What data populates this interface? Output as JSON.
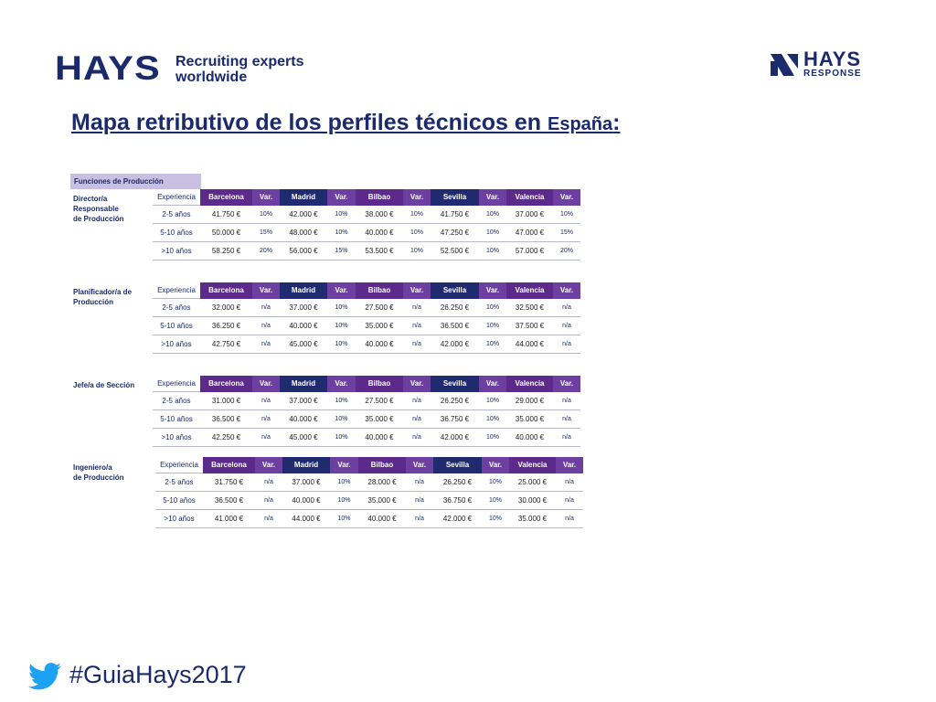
{
  "header": {
    "logo_text": "HAYS",
    "tagline_line1": "Recruiting experts",
    "tagline_line2": "worldwide",
    "response_logo_line1": "HAYS",
    "response_logo_line2": "RESPONSE"
  },
  "title": {
    "main": "Mapa retributivo de los perfiles técnicos en ",
    "country": "España",
    "colon": ":"
  },
  "section_header": "Funciones de Producción",
  "columns": {
    "experiencia": "Experiencia",
    "cities": [
      "Barcelona",
      "Madrid",
      "Bilbao",
      "Sevilla",
      "Valencia"
    ],
    "var": "Var."
  },
  "groups": [
    {
      "label": "Director/a\nResponsable\nde Producción",
      "rows": [
        {
          "exp": "2-5 años",
          "cells": [
            [
              "41.750 €",
              "10%"
            ],
            [
              "42.000 €",
              "10%"
            ],
            [
              "38.000 €",
              "10%"
            ],
            [
              "41.750 €",
              "10%"
            ],
            [
              "37.000 €",
              "10%"
            ]
          ]
        },
        {
          "exp": "5-10 años",
          "cells": [
            [
              "50.000 €",
              "15%"
            ],
            [
              "48.000 €",
              "10%"
            ],
            [
              "40.000 €",
              "10%"
            ],
            [
              "47.250 €",
              "10%"
            ],
            [
              "47.000 €",
              "15%"
            ]
          ]
        },
        {
          "exp": ">10 años",
          "cells": [
            [
              "58.250 €",
              "20%"
            ],
            [
              "56.000 €",
              "15%"
            ],
            [
              "53.500 €",
              "10%"
            ],
            [
              "52.500 €",
              "10%"
            ],
            [
              "57.000 €",
              "20%"
            ]
          ]
        }
      ]
    },
    {
      "label": "Planificador/a de\nProducción",
      "rows": [
        {
          "exp": "2-5 años",
          "cells": [
            [
              "32.000 €",
              "n/a"
            ],
            [
              "37.000 €",
              "10%"
            ],
            [
              "27.500 €",
              "n/a"
            ],
            [
              "26.250 €",
              "10%"
            ],
            [
              "32.500 €",
              "n/a"
            ]
          ]
        },
        {
          "exp": "5-10 años",
          "cells": [
            [
              "36.250 €",
              "n/a"
            ],
            [
              "40.000 €",
              "10%"
            ],
            [
              "35.000 €",
              "n/a"
            ],
            [
              "36.500 €",
              "10%"
            ],
            [
              "37.500 €",
              "n/a"
            ]
          ]
        },
        {
          "exp": ">10 años",
          "cells": [
            [
              "42.750 €",
              "n/a"
            ],
            [
              "45.000 €",
              "10%"
            ],
            [
              "40.000 €",
              "n/a"
            ],
            [
              "42.000 €",
              "10%"
            ],
            [
              "44.000 €",
              "n/a"
            ]
          ]
        }
      ]
    },
    {
      "label": "Jefe/a de Sección",
      "rows": [
        {
          "exp": "2-5 años",
          "cells": [
            [
              "31.000 €",
              "n/a"
            ],
            [
              "37.000 €",
              "10%"
            ],
            [
              "27.500 €",
              "n/a"
            ],
            [
              "26.250 €",
              "10%"
            ],
            [
              "29.000 €",
              "n/a"
            ]
          ]
        },
        {
          "exp": "5-10 años",
          "cells": [
            [
              "36.500 €",
              "n/a"
            ],
            [
              "40.000 €",
              "10%"
            ],
            [
              "35.000 €",
              "n/a"
            ],
            [
              "36.750 €",
              "10%"
            ],
            [
              "35.000 €",
              "n/a"
            ]
          ]
        },
        {
          "exp": ">10 años",
          "cells": [
            [
              "42.250 €",
              "n/a"
            ],
            [
              "45.000 €",
              "10%"
            ],
            [
              "40.000 €",
              "n/a"
            ],
            [
              "42.000 €",
              "10%"
            ],
            [
              "40.000 €",
              "n/a"
            ]
          ]
        }
      ]
    },
    {
      "label": "Ingeniero/a\nde Producción",
      "rows": [
        {
          "exp": "2-5 años",
          "cells": [
            [
              "31.750 €",
              "n/a"
            ],
            [
              "37.000 €",
              "10%"
            ],
            [
              "28.000 €",
              "n/a"
            ],
            [
              "26.250 €",
              "10%"
            ],
            [
              "25.000 €",
              "n/a"
            ]
          ]
        },
        {
          "exp": "5-10 años",
          "cells": [
            [
              "36.500 €",
              "n/a"
            ],
            [
              "40.000 €",
              "10%"
            ],
            [
              "35.000 €",
              "n/a"
            ],
            [
              "36.750 €",
              "10%"
            ],
            [
              "30.000 €",
              "n/a"
            ]
          ]
        },
        {
          "exp": ">10 años",
          "cells": [
            [
              "41.000 €",
              "n/a"
            ],
            [
              "44.000 €",
              "10%"
            ],
            [
              "40.000 €",
              "n/a"
            ],
            [
              "42.000 €",
              "10%"
            ],
            [
              "35.000 €",
              "n/a"
            ]
          ]
        }
      ]
    }
  ],
  "footer": {
    "hashtag": "#GuiaHays2017"
  },
  "colors": {
    "navy": "#1f2b6e",
    "purple": "#5b2a8a",
    "var_purple": "#6d3fa0",
    "lavender": "#c9bfe0",
    "twitter_blue": "#1da1f2"
  }
}
